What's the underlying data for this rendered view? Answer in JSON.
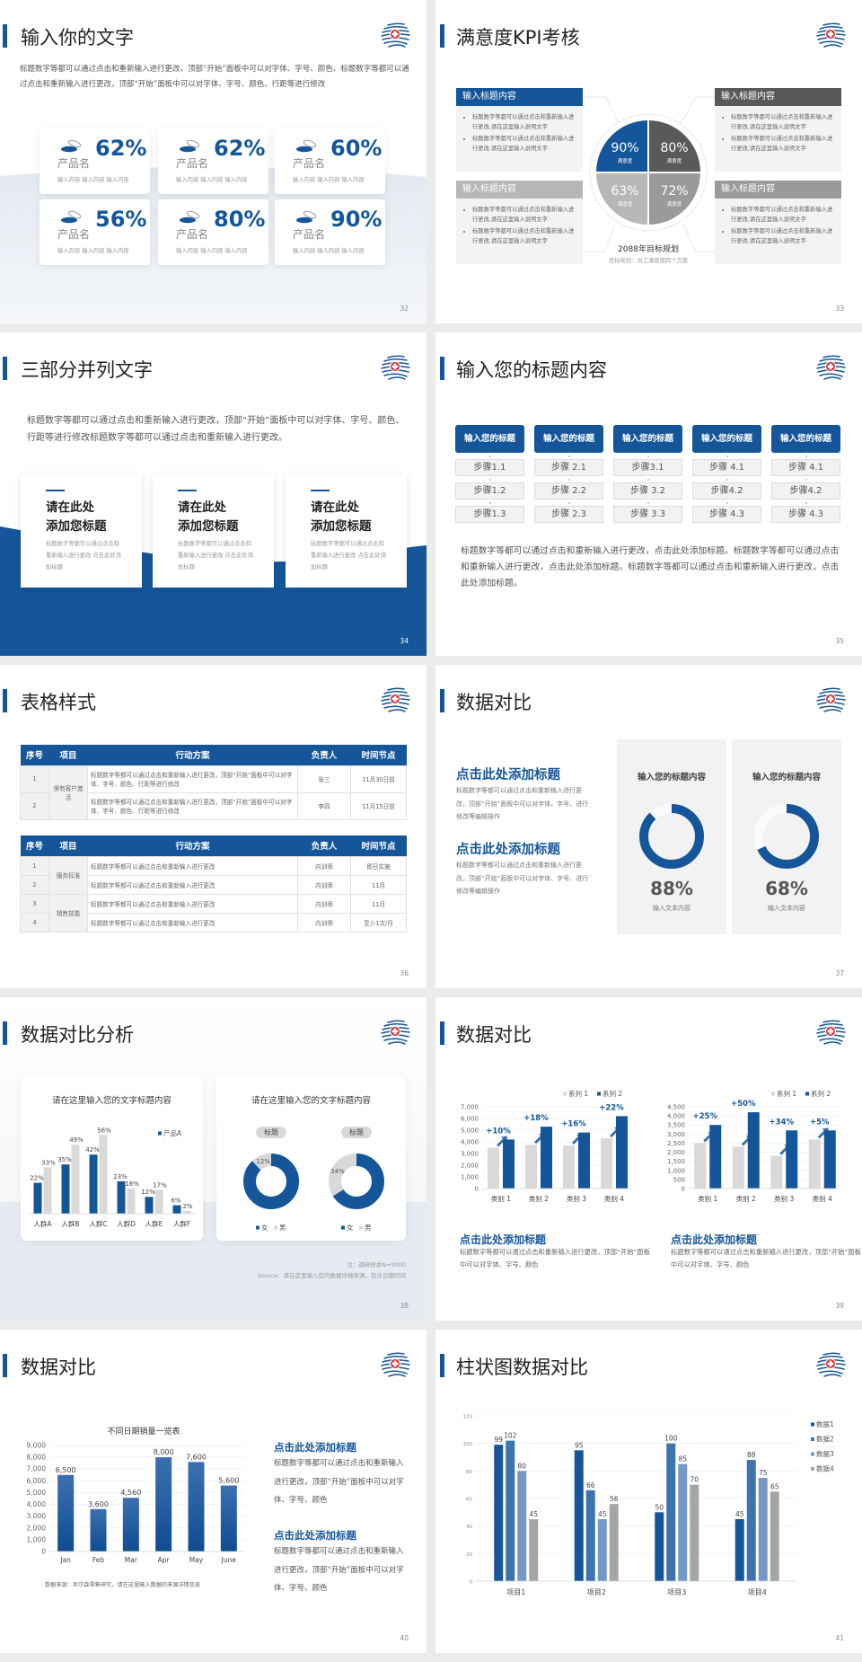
{
  "colors": {
    "primary": "#15569a",
    "dark_grey": "#595959",
    "mid_grey": "#9a9a9a",
    "light_grey": "#b7b7b7",
    "accent_red": "#d9262c"
  },
  "logo": {
    "icon": "medical-cross-wave-logo"
  },
  "s32": {
    "title": "输入你的文字",
    "page": "32",
    "body": "标题数字等都可以通过点击和重新输入进行更改，顶部“开始”面板中可以对字体、字号、颜色、标题数字等都可以通过点击和重新输入进行更改，顶部“开始”面板中可以对字体、字号、颜色、行距等进行修改",
    "cards": [
      {
        "icon": "pill-dish-icon",
        "name": "产品名",
        "value": "62%",
        "desc": "输入内容  输入内容  输入内容"
      },
      {
        "icon": "pill-dish-icon",
        "name": "产品名",
        "value": "62%",
        "desc": "输入内容  输入内容  输入内容"
      },
      {
        "icon": "pill-dish-icon",
        "name": "产品名",
        "value": "60%",
        "desc": "输入内容  输入内容  输入内容"
      },
      {
        "icon": "pill-dish-icon",
        "name": "产品名",
        "value": "56%",
        "desc": "输入内容  输入内容  输入内容"
      },
      {
        "icon": "pill-dish-icon",
        "name": "产品名",
        "value": "80%",
        "desc": "输入内容  输入内容  输入内容"
      },
      {
        "icon": "pill-dish-icon",
        "name": "产品名",
        "value": "90%",
        "desc": "输入内容  输入内容  输入内容"
      }
    ]
  },
  "s33": {
    "title": "满意度KPI考核",
    "page": "33",
    "panels": [
      {
        "header": "输入标题内容",
        "bullets": [
          "标题数字等都可以通过点击和重新输入进行更改,请在这里输入说明文字",
          "标题数字等都可以通过点击和重新输入进行更改,请在这里输入说明文字"
        ]
      },
      {
        "header": "输入标题内容",
        "bullets": [
          "标题数字等都可以通过点击和重新输入进行更改,请在这里输入说明文字",
          "标题数字等都可以通过点击和重新输入进行更改,请在这里输入说明文字"
        ]
      },
      {
        "header": "输入标题内容",
        "bullets": [
          "标题数字等都可以通过点击和重新输入进行更改,请在这里输入说明文字",
          "标题数字等都可以通过点击和重新输入进行更改,请在这里输入说明文字"
        ]
      },
      {
        "header": "输入标题内容",
        "bullets": [
          "标题数字等都可以通过点击和重新输入进行更改,请在这里输入说明文字",
          "标题数字等都可以通过点击和重新输入进行更改,请在这里输入说明文字"
        ]
      }
    ],
    "quadrants": [
      {
        "value": "90%",
        "label": "满意度"
      },
      {
        "value": "80%",
        "label": "满意度"
      },
      {
        "value": "63%",
        "label": "满意度"
      },
      {
        "value": "72%",
        "label": "满意度"
      }
    ],
    "center_title": "2088年目标规划",
    "center_sub": "目标规划：员工满意度四个方面"
  },
  "s34": {
    "title": "三部分并列文字",
    "page": "34",
    "body": "标题数字等都可以通过点击和重新输入进行更改，顶部“开始”面板中可以对字体、字号、颜色、行距等进行修改标题数字等都可以通过点击和重新输入进行更改。",
    "cards": [
      {
        "title": "请在此处\n添加您标题",
        "desc": "标题数字等都可以通过点击和重新输入进行更改 点击此处添加标题"
      },
      {
        "title": "请在此处\n添加您标题",
        "desc": "标题数字等都可以通过点击和重新输入进行更改 点击此处添加标题"
      },
      {
        "title": "请在此处\n添加您标题",
        "desc": "标题数字等都可以通过点击和重新输入进行更改 点击此处添加标题"
      }
    ]
  },
  "s35": {
    "title": "输入您的标题内容",
    "page": "35",
    "columns": [
      {
        "header": "输入您的标题",
        "steps": [
          "步骤1.1",
          "步骤1.2",
          "步骤1.3"
        ]
      },
      {
        "header": "输入您的标题",
        "steps": [
          "步骤 2.1",
          "步骤 2.2",
          "步骤 2.3"
        ]
      },
      {
        "header": "输入您的标题",
        "steps": [
          "步骤3.1",
          "步骤 3.2",
          "步骤 3.3"
        ]
      },
      {
        "header": "输入您的标题",
        "steps": [
          "步骤 4.1",
          "步骤4.2",
          "步骤 4.3"
        ]
      },
      {
        "header": "输入您的标题",
        "steps": [
          "步骤 4.1",
          "步骤4.2",
          "步骤 4.3"
        ]
      }
    ],
    "body": "标题数字等都可以通过点击和重新输入进行更改，点击此处添加标题。标题数字等都可以通过点击和重新输入进行更改，点击此处添加标题。标题数字等都可以通过点击和重新输入进行更改，点击此处添加标题。"
  },
  "s36": {
    "title": "表格样式",
    "page": "36",
    "headers": [
      "序号",
      "项目",
      "行动方案",
      "负责人",
      "时间节点"
    ],
    "tables": [
      [
        {
          "item": "保有客户激活",
          "rows": [
            {
              "no": "1",
              "plan": "标题数字等都可以通过点击和重新输入进行更改，顶部“开始”面板中可以对字体、字号、颜色、行距等进行修改",
              "owner": "张三",
              "time": "11月30日前"
            },
            {
              "no": "2",
              "plan": "标题数字等都可以通过点击和重新输入进行更改，顶部“开始”面板中可以对字体、字号、颜色、行距等进行修改",
              "owner": "李四",
              "time": "11月15日前"
            }
          ]
        }
      ],
      [
        {
          "item": "服务标准",
          "rows": [
            {
              "no": "1",
              "plan": "标题数字等都可以通过点击和重新输入进行更改",
              "owner": "内训师",
              "time": "即日实施"
            },
            {
              "no": "2",
              "plan": "标题数字等都可以通过点击和重新输入进行更改",
              "owner": "内训师",
              "time": "11月"
            }
          ]
        },
        {
          "item": "销售技能",
          "rows": [
            {
              "no": "3",
              "plan": "标题数字等都可以通过点击和重新输入进行更改",
              "owner": "内训师",
              "time": "11月"
            },
            {
              "no": "4",
              "plan": "标题数字等都可以通过点击和重新输入进行更改",
              "owner": "内训师",
              "time": "至少1次/月"
            }
          ]
        }
      ]
    ]
  },
  "s37": {
    "title": "数据对比",
    "page": "37",
    "blocks": [
      {
        "title": "点击此处添加标题",
        "body": "标题数字等都可以通过点击和重新输入进行更改，顶部“开始”面板中可以对字体、字号、进行修改等编辑操作"
      },
      {
        "title": "点击此处添加标题",
        "body": "标题数字等都可以通过点击和重新输入进行更改，顶部“开始”面板中可以对字体、字号、进行修改等编辑操作"
      }
    ],
    "panels": [
      {
        "title": "输入您的标题内容",
        "value": "88%",
        "progress": 88,
        "sub": "输入文本内容"
      },
      {
        "title": "输入您的标题内容",
        "value": "68%",
        "progress": 68,
        "sub": "输入文本内容"
      }
    ]
  },
  "s38": {
    "title": "数据对比分析",
    "page": "38",
    "note": "注：调研样本N=9000",
    "source": "Source：请在这里输入您的数据详细来源，包含日期时间"
  },
  "s39": {
    "title": "数据对比",
    "page": "39",
    "blocks": [
      {
        "title": "点击此处添加标题",
        "body": "标题数字等都可以通过点击和重新输入进行更改，顶部“开始”面板中可以对字体、字号、颜色"
      },
      {
        "title": "点击此处添加标题",
        "body": "标题数字等都可以通过点击和重新输入进行更改，顶部“开始”面板中可以对字体、字号、颜色"
      }
    ]
  },
  "s40": {
    "title": "数据对比",
    "page": "40",
    "source": "数据来源：尼尔森零售研究，请在这里输入数据的来源详情信息",
    "blocks": [
      {
        "title": "点击此处添加标题",
        "body": "标题数字等都可以通过点击和重新输入进行更改，顶部“开始”面板中可以对字体、字号、颜色"
      },
      {
        "title": "点击此处添加标题",
        "body": "标题数字等都可以通过点击和重新输入进行更改，顶部“开始”面板中可以对字体、字号、颜色"
      }
    ]
  },
  "s41": {
    "title": "柱状图数据对比",
    "page": "41"
  },
  "chart_data": [
    {
      "type": "bar",
      "slide": "38",
      "title": "请在这里输入您的文字标题内容",
      "categories": [
        "人群A",
        "人群B",
        "人群C",
        "人群D",
        "人群E",
        "人群F"
      ],
      "series": [
        {
          "name": "产品A",
          "values": [
            22,
            35,
            42,
            23,
            12,
            6
          ]
        },
        {
          "values": [
            33,
            49,
            56,
            18,
            17,
            2
          ]
        }
      ],
      "value_suffix": "%",
      "legend": "top-right",
      "grid": false,
      "colors": [
        "#15569a",
        "#d9d9d9"
      ]
    },
    {
      "type": "pie",
      "slide": "38",
      "title": "请在这里输入您的文字标题内容",
      "style": "donut",
      "charts": [
        {
          "label": "标题",
          "slices": [
            {
              "name": "女",
              "value": 88
            },
            {
              "name": "男",
              "value": 12
            }
          ],
          "shown_labels": [
            "12%"
          ]
        },
        {
          "label": "标题",
          "slices": [
            {
              "name": "女",
              "value": 66
            },
            {
              "name": "男",
              "value": 34
            }
          ],
          "shown_labels": [
            "34%"
          ]
        }
      ],
      "legend": "bottom",
      "colors": [
        "#15569a",
        "#d9d9d9"
      ]
    },
    {
      "type": "bar",
      "slide": "39",
      "categories": [
        "类别 1",
        "类别 2",
        "类别 3",
        "类别 4"
      ],
      "series": [
        {
          "name": "系列 1",
          "values": [
            3500,
            3750,
            3700,
            4300
          ]
        },
        {
          "name": "系列 2",
          "values": [
            4200,
            5300,
            4800,
            6200
          ]
        }
      ],
      "annotations": [
        "+10%",
        "+18%",
        "+16%",
        "+22%"
      ],
      "ylim": [
        0,
        7000
      ],
      "ytick_step": 1000,
      "grid": true,
      "legend": "top-right",
      "colors": [
        "#d9d9d9",
        "#15569a"
      ]
    },
    {
      "type": "bar",
      "slide": "39",
      "categories": [
        "类别 1",
        "类别 2",
        "类别 3",
        "类别 4"
      ],
      "series": [
        {
          "name": "系列 1",
          "values": [
            2500,
            2300,
            1800,
            2700
          ]
        },
        {
          "name": "系列 2",
          "values": [
            3500,
            4200,
            3200,
            3200
          ]
        }
      ],
      "annotations": [
        "+25%",
        "+50%",
        "+34%",
        "+5%"
      ],
      "ylim": [
        0,
        4500
      ],
      "ytick_step": 500,
      "grid": true,
      "legend": "top-right",
      "colors": [
        "#d9d9d9",
        "#15569a"
      ]
    },
    {
      "type": "bar",
      "slide": "40",
      "title": "不同日期销量一览表",
      "categories": [
        "Jan",
        "Feb",
        "Mar",
        "Apr",
        "May",
        "June"
      ],
      "series": [
        {
          "values": [
            6500,
            3600,
            4560,
            8000,
            7600,
            5600
          ]
        }
      ],
      "ylim": [
        0,
        9000
      ],
      "ytick_step": 1000,
      "grid": true,
      "colors": [
        "#15569a"
      ]
    },
    {
      "type": "bar",
      "slide": "41",
      "categories": [
        "项目1",
        "项目2",
        "项目3",
        "项目4"
      ],
      "series": [
        {
          "name": "数据1",
          "values": [
            99,
            95,
            50,
            45
          ]
        },
        {
          "name": "数据2",
          "values": [
            102,
            66,
            100,
            88
          ]
        },
        {
          "name": "数据3",
          "values": [
            80,
            45,
            85,
            75
          ]
        },
        {
          "name": "数据4",
          "values": [
            45,
            56,
            70,
            65
          ]
        }
      ],
      "ylim": [
        0,
        120
      ],
      "ytick_step": 20,
      "grid": true,
      "legend": "right",
      "colors": [
        "#15569a",
        "#3d74ae",
        "#7599c3",
        "#a5a5a5"
      ]
    }
  ]
}
